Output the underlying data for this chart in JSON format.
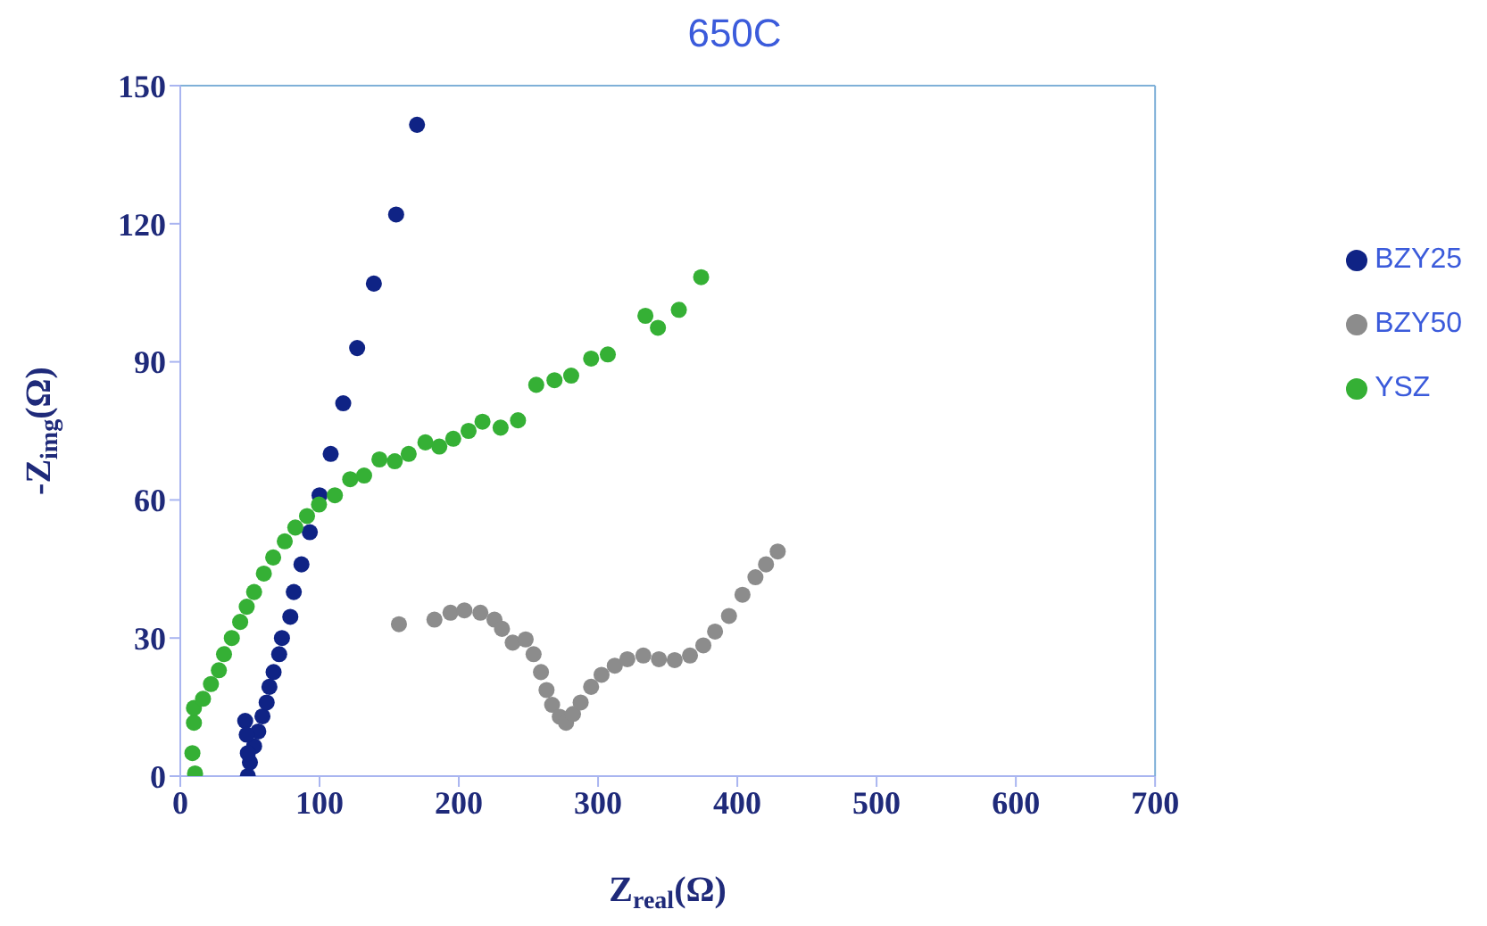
{
  "chart_data": {
    "type": "scatter",
    "title": "650C",
    "xlabel": "Z$_{real}$(Ω)",
    "ylabel": "-Z$_{img}$(Ω)",
    "xlim": [
      0,
      700
    ],
    "xticks": [
      0,
      100,
      200,
      300,
      400,
      500,
      600,
      700
    ],
    "ylim": [
      0,
      150
    ],
    "yticks": [
      0,
      30,
      60,
      90,
      120,
      150
    ],
    "grid": false,
    "legend": "right",
    "marker": "circle",
    "series": [
      {
        "name": "BZY25",
        "color": "#0f2385",
        "x": [
          48.5,
          50,
          53,
          56,
          59,
          62,
          64,
          67,
          71,
          73,
          79,
          81.5,
          87,
          93,
          100,
          108,
          117,
          127,
          139,
          155,
          170,
          46.6,
          47.7,
          48.5
        ],
        "values": [
          0,
          3,
          6.5,
          9.7,
          13,
          16,
          19.4,
          22.6,
          26.5,
          30,
          34.6,
          40,
          46,
          53,
          61,
          70,
          81,
          93,
          107,
          122,
          141.5,
          12,
          9,
          5
        ]
      },
      {
        "name": "BZY50",
        "color": "#8c8c8c",
        "x": [
          157,
          182.5,
          194,
          204,
          215.5,
          225.6,
          231,
          238.7,
          248,
          253.7,
          259,
          263,
          267,
          272.5,
          277,
          282,
          287.5,
          295,
          302.5,
          312,
          321,
          332.5,
          343.7,
          355,
          366,
          375.6,
          384,
          394,
          403.7,
          413,
          420.6,
          429
        ],
        "values": [
          33,
          34,
          35.5,
          36,
          35.5,
          34,
          32,
          29,
          29.7,
          26.5,
          22.6,
          18.7,
          15.5,
          12.9,
          11.6,
          13.5,
          16,
          19.4,
          22,
          24,
          25.4,
          26.2,
          25.4,
          25.2,
          26.2,
          28.4,
          31.4,
          34.8,
          39.4,
          43.2,
          46,
          48.8
        ]
      },
      {
        "name": "YSZ",
        "color": "#35b035",
        "x": [
          10.6,
          8.7,
          9.8,
          9.8,
          16.3,
          22,
          27.7,
          31.4,
          37,
          43,
          47.7,
          53,
          60,
          66.7,
          75,
          82.6,
          91,
          99.6,
          111,
          122,
          132,
          143,
          154,
          164,
          176,
          186,
          196,
          207,
          217,
          230,
          242.5,
          255.6,
          268.7,
          280.7,
          295,
          307,
          334,
          343,
          358,
          374
        ],
        "values": [
          0.6,
          5,
          11.6,
          14.8,
          16.8,
          20,
          23,
          26.5,
          30,
          33.5,
          36.8,
          40,
          44,
          47.5,
          51,
          54,
          56.5,
          59,
          61,
          64.5,
          65.3,
          68.8,
          68.4,
          70,
          72.5,
          71.6,
          73.3,
          75,
          77,
          75.7,
          77.3,
          85,
          86,
          87,
          90.7,
          91.6,
          100,
          97.4,
          101.3,
          108.4
        ]
      }
    ]
  }
}
